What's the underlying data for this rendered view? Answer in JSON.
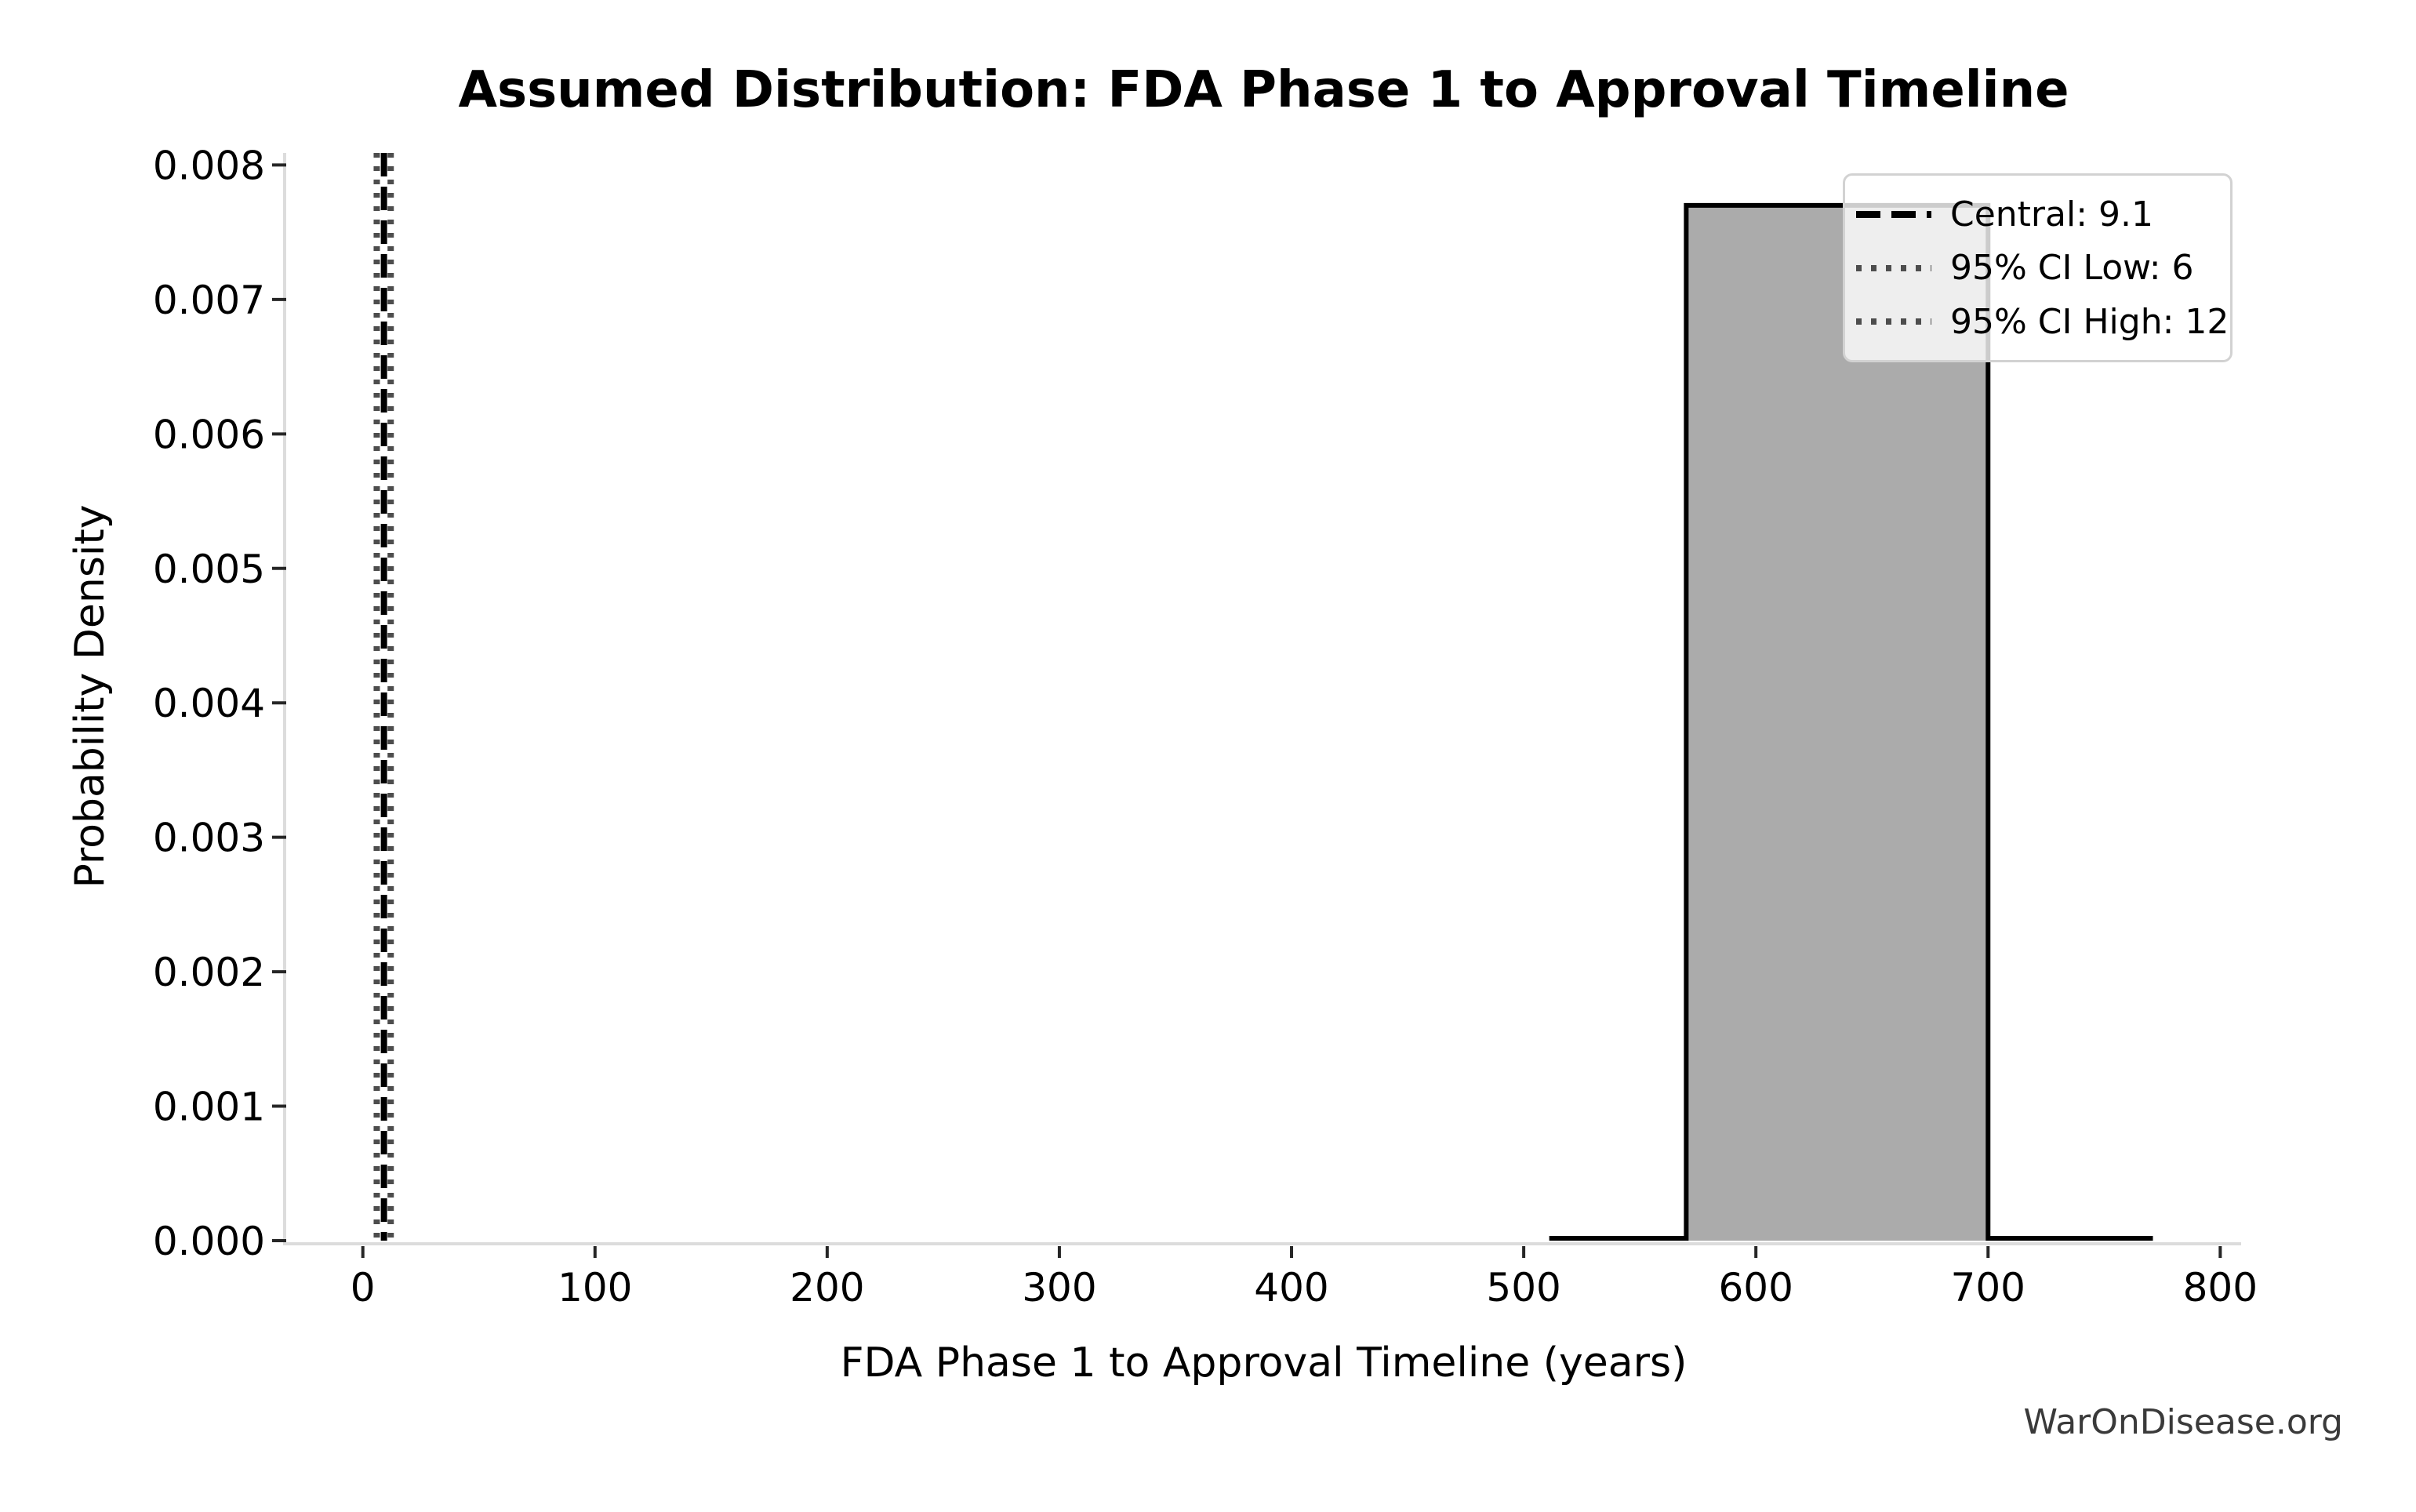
{
  "figure": {
    "watermark": "WarOnDisease.org"
  },
  "chart_data": {
    "type": "area",
    "title": "Assumed Distribution: FDA Phase 1 to Approval Timeline",
    "xlabel": "FDA Phase 1 to Approval Timeline (years)",
    "ylabel": "Probability Density",
    "xlim": [
      -33,
      809
    ],
    "ylim": [
      0,
      0.00809
    ],
    "grid": false,
    "xticks": {
      "values": [
        0,
        100,
        200,
        300,
        400,
        500,
        600,
        700,
        800
      ],
      "labels": [
        "0",
        "100",
        "200",
        "300",
        "400",
        "500",
        "600",
        "700",
        "800"
      ]
    },
    "yticks": {
      "values": [
        0,
        0.001,
        0.002,
        0.003,
        0.004,
        0.005,
        0.006,
        0.007,
        0.008
      ],
      "labels": [
        "0.000",
        "0.001",
        "0.002",
        "0.003",
        "0.004",
        "0.005",
        "0.006",
        "0.007",
        "0.008"
      ]
    },
    "density": {
      "x": [
        511,
        570,
        570,
        700,
        700,
        771
      ],
      "y": [
        0,
        0,
        0.0077,
        0.0077,
        0,
        0
      ],
      "fill_between_x": [
        570,
        700
      ],
      "peak_value": 0.0077
    },
    "vlines": [
      {
        "name": "central",
        "label": "Central: 9.1",
        "value": 9.1,
        "style": "dashed",
        "color": "#000000"
      },
      {
        "name": "ci-low",
        "label": "95% CI Low: 6",
        "value": 6,
        "style": "dotted",
        "color": "#4d4d4d"
      },
      {
        "name": "ci-high",
        "label": "95% CI High: 12",
        "value": 12,
        "style": "dotted",
        "color": "#4d4d4d"
      }
    ],
    "legend": {
      "position": "upper right"
    },
    "colors": {
      "fill": "#ababab",
      "line": "#000000",
      "ci_line": "#4d4d4d",
      "spine": "#dcdcdc",
      "tick": "#262626",
      "text": "#000000",
      "watermark": "#3a3a3a"
    }
  }
}
